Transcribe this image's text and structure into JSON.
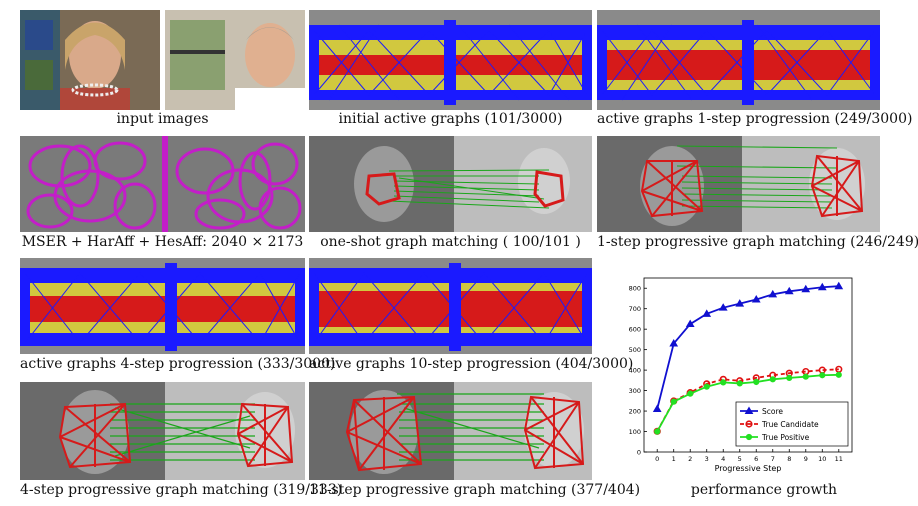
{
  "captions": {
    "input_images": "input images",
    "initial_active": "initial active graphs (101/3000)",
    "active_1step": "active graphs 1-step progression (249/3000)",
    "features": "MSER + HarAff + HesAff: 2040 × 2173",
    "one_shot": "one-shot graph matching ( 100/101 )",
    "progressive_1step": "1-step progressive graph matching (246/249)",
    "active_4step": "active graphs 4-step progression (333/3000)",
    "active_10step": "active graphs 10-step progression (404/3000)",
    "progressive_4step": "4-step progressive graph matching (319/333)",
    "progressive_11step": "11-step progressive graph matching (377/404)",
    "performance": "performance growth"
  },
  "colors": {
    "graph_blue": "#1a1aff",
    "graph_yellow": "#e6dc2a",
    "graph_red": "#d61a1a",
    "feature_magenta": "#c31ec8",
    "match_green": "#1aa61a",
    "score": "#1010d0",
    "true_candidate": "#e01010",
    "true_positive": "#22e022"
  },
  "chart_data": {
    "type": "line",
    "xlabel": "Progressive Step",
    "ylabel": "",
    "x": [
      0,
      1,
      2,
      3,
      4,
      5,
      6,
      7,
      8,
      9,
      10,
      11
    ],
    "xticks": [
      "0",
      "1",
      "2",
      "3",
      "4",
      "5",
      "6",
      "7",
      "8",
      "9",
      "10",
      "11"
    ],
    "yticks": [
      "0",
      "100",
      "200",
      "300",
      "400",
      "500",
      "600",
      "700",
      "800"
    ],
    "ylim": [
      0,
      850
    ],
    "xlim": [
      -0.8,
      11.8
    ],
    "legend_position": "bottom-right",
    "series": [
      {
        "name": "Score",
        "values": [
          210,
          530,
          625,
          675,
          705,
          725,
          745,
          770,
          785,
          795,
          805,
          810
        ]
      },
      {
        "name": "True Candidate",
        "values": [
          101,
          249,
          290,
          333,
          355,
          348,
          362,
          375,
          385,
          393,
          400,
          404
        ]
      },
      {
        "name": "True Positive",
        "values": [
          100,
          246,
          285,
          319,
          340,
          335,
          342,
          355,
          362,
          368,
          375,
          377
        ]
      }
    ]
  }
}
